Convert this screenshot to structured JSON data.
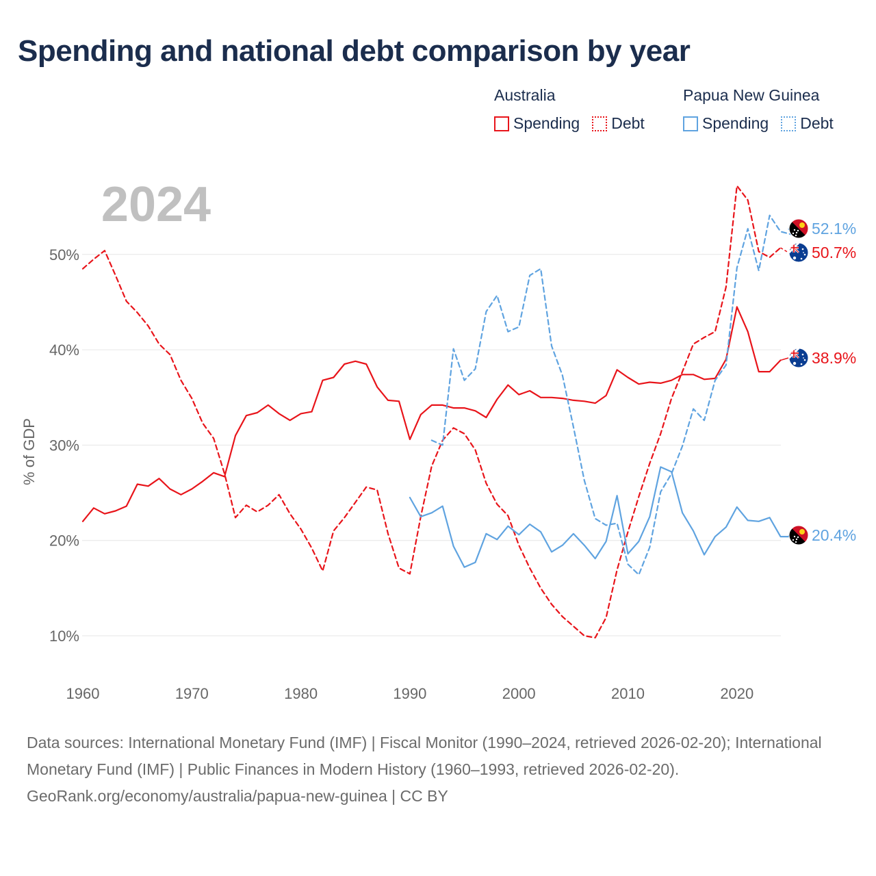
{
  "title": "Spending and national debt comparison by year",
  "legend": {
    "groups": [
      {
        "name": "Australia",
        "color": "#e8141a",
        "items": [
          "Spending",
          "Debt"
        ]
      },
      {
        "name": "Papua New Guinea",
        "color": "#5fa3e0",
        "items": [
          "Spending",
          "Debt"
        ]
      }
    ]
  },
  "chart_data": {
    "type": "line",
    "year_label": "2024",
    "ylabel": "% of GDP",
    "xlim": [
      1960,
      2025
    ],
    "ylim": [
      5,
      58
    ],
    "x_ticks": [
      1960,
      1970,
      1980,
      1990,
      2000,
      2010,
      2020
    ],
    "y_ticks": [
      10,
      20,
      30,
      40,
      50
    ],
    "y_tick_labels": [
      "10%",
      "20%",
      "30%",
      "40%",
      "50%"
    ],
    "series": [
      {
        "name": "Australia Spending",
        "country": "Australia",
        "measure": "Spending",
        "color": "#e8141a",
        "dash": false,
        "start_year": 1960,
        "values": [
          22.0,
          23.4,
          22.8,
          23.1,
          23.6,
          25.9,
          25.7,
          26.5,
          25.4,
          24.8,
          25.4,
          26.2,
          27.1,
          26.7,
          31.0,
          33.1,
          33.4,
          34.2,
          33.3,
          32.6,
          33.3,
          33.5,
          36.8,
          37.1,
          38.5,
          38.8,
          38.5,
          36.1,
          34.7,
          34.6,
          30.6,
          33.2,
          34.2,
          34.2,
          33.9,
          33.9,
          33.6,
          32.9,
          34.8,
          36.3,
          35.3,
          35.7,
          35.0,
          35.0,
          34.9,
          34.7,
          34.6,
          34.4,
          35.2,
          37.9,
          37.1,
          36.4,
          36.6,
          36.5,
          36.8,
          37.4,
          37.4,
          36.9,
          37.0,
          39.0,
          44.5,
          41.9,
          37.7,
          37.7,
          38.9
        ]
      },
      {
        "name": "Australia Debt",
        "country": "Australia",
        "measure": "Debt",
        "color": "#e8141a",
        "dash": true,
        "start_year": 1960,
        "values": [
          48.5,
          49.5,
          50.4,
          47.8,
          45.1,
          43.9,
          42.5,
          40.6,
          39.5,
          36.8,
          34.9,
          32.3,
          30.7,
          27.0,
          22.4,
          23.7,
          23.0,
          23.7,
          24.8,
          22.8,
          21.2,
          19.2,
          16.8,
          21.0,
          22.4,
          24.0,
          25.6,
          25.3,
          20.7,
          17.1,
          16.5,
          22.5,
          27.8,
          30.5,
          31.8,
          31.2,
          29.5,
          26.0,
          23.8,
          22.6,
          19.5,
          17.1,
          15.0,
          13.3,
          12.0,
          11.0,
          10.0,
          9.8,
          11.9,
          16.9,
          20.9,
          24.6,
          28.1,
          31.2,
          34.9,
          37.7,
          40.6,
          41.3,
          41.9,
          46.6,
          57.2,
          55.7,
          50.3,
          49.7,
          50.7
        ]
      },
      {
        "name": "Papua New Guinea Spending",
        "country": "Papua New Guinea",
        "measure": "Spending",
        "color": "#5fa3e0",
        "dash": false,
        "start_year": 1990,
        "values": [
          24.5,
          22.5,
          22.9,
          23.6,
          19.4,
          17.2,
          17.7,
          20.7,
          20.1,
          21.5,
          20.6,
          21.7,
          20.9,
          18.8,
          19.5,
          20.7,
          19.5,
          18.1,
          19.9,
          24.7,
          18.6,
          19.9,
          22.5,
          27.7,
          27.2,
          22.9,
          21.0,
          18.5,
          20.4,
          21.4,
          23.5,
          22.1,
          22.0,
          22.4,
          20.4,
          20.4
        ]
      },
      {
        "name": "Papua New Guinea Debt",
        "country": "Papua New Guinea",
        "measure": "Debt",
        "color": "#5fa3e0",
        "dash": true,
        "start_year": 1992,
        "values": [
          30.5,
          30.0,
          40.1,
          36.8,
          38.0,
          44.0,
          45.7,
          41.9,
          42.4,
          47.8,
          48.5,
          40.4,
          37.3,
          31.9,
          26.3,
          22.3,
          21.6,
          21.8,
          17.5,
          16.4,
          19.3,
          25.1,
          27.0,
          29.9,
          33.8,
          32.6,
          36.8,
          38.4,
          48.6,
          52.7,
          48.3,
          54.1,
          52.4,
          52.1
        ]
      }
    ],
    "end_labels": [
      {
        "series": "Papua New Guinea Debt",
        "text": "52.1%",
        "value": 52.1,
        "flag": "papua-new-guinea",
        "color": "#5fa3e0"
      },
      {
        "series": "Australia Debt",
        "text": "50.7%",
        "value": 50.7,
        "flag": "australia",
        "color": "#e8141a"
      },
      {
        "series": "Australia Spending",
        "text": "38.9%",
        "value": 38.9,
        "flag": "australia",
        "color": "#e8141a"
      },
      {
        "series": "Papua New Guinea Spending",
        "text": "20.4%",
        "value": 20.4,
        "flag": "papua-new-guinea",
        "color": "#5fa3e0"
      }
    ]
  },
  "footer": {
    "sources": "Data sources: International Monetary Fund (IMF) | Fiscal Monitor (1990–2024, retrieved 2026-02-20); International Monetary Fund (IMF) | Public Finances in Modern History (1960–1993, retrieved 2026-02-20).",
    "credit": "GeoRank.org/economy/australia/papua-new-guinea | CC BY"
  }
}
